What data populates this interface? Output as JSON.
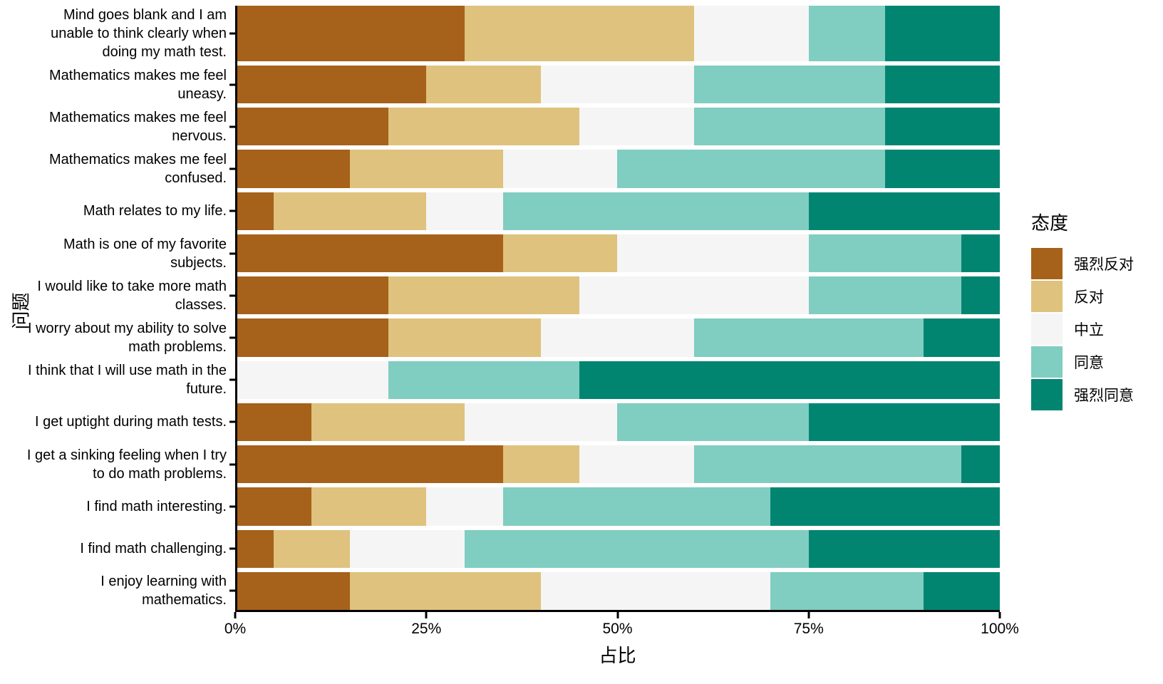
{
  "chart_data": {
    "type": "bar",
    "stacked": true,
    "orientation": "horizontal",
    "percent_scale": true,
    "xlabel": "占比",
    "ylabel": "问题",
    "legend_title": "态度",
    "legend_position": "right",
    "grid": false,
    "xlim": [
      0,
      100
    ],
    "x_ticks": [
      "0%",
      "25%",
      "50%",
      "75%",
      "100%"
    ],
    "x_tick_positions": [
      0,
      25,
      50,
      75,
      100
    ],
    "categories": [
      "Mind goes blank and I am unable to think clearly when doing my math test.",
      "Mathematics makes me feel uneasy.",
      "Mathematics makes me feel nervous.",
      "Mathematics makes me feel confused.",
      "Math relates to my life.",
      "Math is one of my favorite subjects.",
      "I would like to take more math classes.",
      "I worry about my ability to solve math problems.",
      "I think that I will use math in the future.",
      "I get uptight during math tests.",
      "I get a sinking feeling when I try to do math problems.",
      "I find math interesting.",
      "I find math challenging.",
      "I enjoy learning with mathematics."
    ],
    "series": [
      {
        "name": "强烈反对",
        "color": "#A6611A",
        "values": [
          30,
          25,
          20,
          15,
          5,
          35,
          20,
          20,
          0,
          10,
          35,
          10,
          5,
          15
        ]
      },
      {
        "name": "反对",
        "color": "#DFC27D",
        "values": [
          30,
          15,
          25,
          20,
          20,
          15,
          25,
          20,
          0,
          20,
          10,
          15,
          10,
          25
        ]
      },
      {
        "name": "中立",
        "color": "#F5F5F5",
        "values": [
          15,
          20,
          15,
          15,
          10,
          25,
          30,
          20,
          20,
          20,
          15,
          10,
          15,
          30
        ]
      },
      {
        "name": "同意",
        "color": "#80CDC1",
        "values": [
          10,
          25,
          25,
          35,
          40,
          20,
          20,
          30,
          25,
          25,
          35,
          35,
          45,
          20
        ]
      },
      {
        "name": "强烈同意",
        "color": "#018571",
        "values": [
          15,
          15,
          15,
          15,
          25,
          5,
          5,
          10,
          55,
          25,
          5,
          30,
          25,
          10
        ]
      }
    ]
  }
}
